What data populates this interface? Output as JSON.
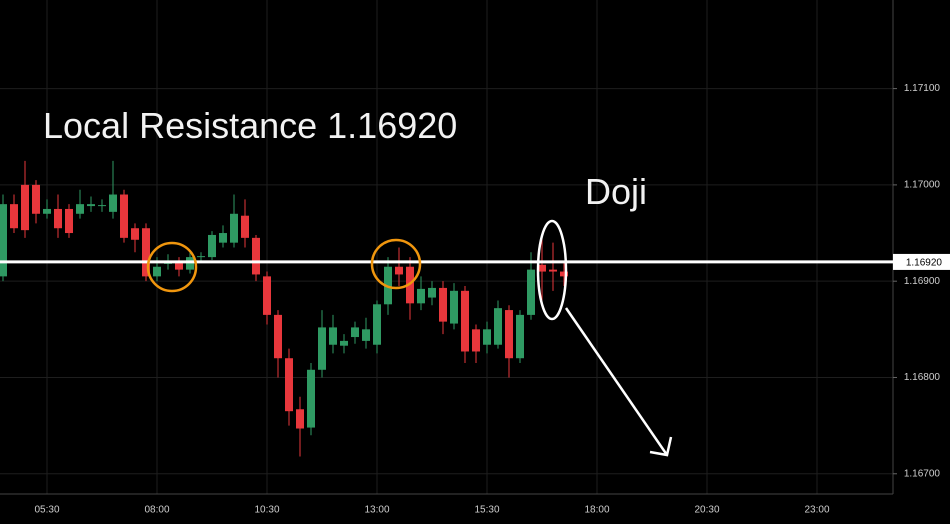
{
  "chart_data": {
    "type": "candlestick",
    "x": [
      "04:30",
      "04:45",
      "05:00",
      "05:15",
      "05:30",
      "05:45",
      "06:00",
      "06:15",
      "06:30",
      "06:45",
      "07:00",
      "07:15",
      "07:30",
      "07:45",
      "08:00",
      "08:15",
      "08:30",
      "08:45",
      "09:00",
      "09:15",
      "09:30",
      "09:45",
      "10:00",
      "10:15",
      "10:30",
      "10:45",
      "11:00",
      "11:15",
      "11:30",
      "11:45",
      "12:00",
      "12:15",
      "12:30",
      "12:45",
      "13:00",
      "13:15",
      "13:30",
      "13:45",
      "14:00",
      "14:15",
      "14:30",
      "14:45",
      "15:00",
      "15:15",
      "15:30",
      "15:45",
      "16:00",
      "16:15",
      "16:30",
      "16:45",
      "17:00",
      "17:15"
    ],
    "open": [
      1.16905,
      1.1698,
      1.17,
      1.17,
      1.1697,
      1.16975,
      1.16975,
      1.1697,
      1.16978,
      1.16978,
      1.16972,
      1.1699,
      1.16955,
      1.16955,
      1.16905,
      1.16918,
      1.1692,
      1.16912,
      1.16925,
      1.16925,
      1.1694,
      1.1694,
      1.16968,
      1.16945,
      1.16905,
      1.16865,
      1.1682,
      1.16767,
      1.16748,
      1.16808,
      1.16834,
      1.16833,
      1.16842,
      1.16838,
      1.16834,
      1.16876,
      1.16915,
      1.16915,
      1.16877,
      1.16883,
      1.16893,
      1.16856,
      1.1689,
      1.1685,
      1.16834,
      1.16834,
      1.1687,
      1.1682,
      1.16865,
      1.16917,
      1.16912,
      1.1691
    ],
    "high": [
      1.1699,
      1.1699,
      1.17025,
      1.17005,
      1.16985,
      1.1699,
      1.1698,
      1.16995,
      1.16988,
      1.16985,
      1.17025,
      1.16995,
      1.1696,
      1.1696,
      1.16925,
      1.16928,
      1.16925,
      1.1693,
      1.1693,
      1.16952,
      1.16958,
      1.1699,
      1.16985,
      1.16948,
      1.1691,
      1.1687,
      1.1683,
      1.1678,
      1.16815,
      1.1687,
      1.16865,
      1.16845,
      1.16858,
      1.16862,
      1.1688,
      1.16925,
      1.16935,
      1.16925,
      1.16905,
      1.169,
      1.169,
      1.16898,
      1.16895,
      1.16855,
      1.16858,
      1.1688,
      1.16875,
      1.1687,
      1.1693,
      1.16945,
      1.1694,
      1.1692
    ],
    "low": [
      1.169,
      1.1695,
      1.16945,
      1.1696,
      1.16965,
      1.16945,
      1.16945,
      1.16965,
      1.16972,
      1.16972,
      1.16965,
      1.1694,
      1.1693,
      1.169,
      1.169,
      1.16912,
      1.16905,
      1.16908,
      1.1692,
      1.16922,
      1.16935,
      1.16935,
      1.16935,
      1.169,
      1.16855,
      1.168,
      1.1675,
      1.16718,
      1.1674,
      1.168,
      1.16825,
      1.16825,
      1.16835,
      1.1683,
      1.16825,
      1.16865,
      1.16895,
      1.1686,
      1.1687,
      1.16875,
      1.16845,
      1.1685,
      1.16815,
      1.16815,
      1.16825,
      1.1683,
      1.168,
      1.16815,
      1.1686,
      1.1688,
      1.1689,
      1.16895
    ],
    "close": [
      1.1698,
      1.16955,
      1.16953,
      1.1697,
      1.16975,
      1.16955,
      1.1695,
      1.1698,
      1.1698,
      1.16979,
      1.1699,
      1.16945,
      1.16943,
      1.16905,
      1.16915,
      1.1692,
      1.16912,
      1.16925,
      1.16926,
      1.16948,
      1.1695,
      1.1697,
      1.16945,
      1.16907,
      1.16865,
      1.1682,
      1.16765,
      1.16747,
      1.16808,
      1.16852,
      1.16852,
      1.16838,
      1.16852,
      1.1685,
      1.16876,
      1.16915,
      1.16907,
      1.16877,
      1.16892,
      1.16893,
      1.16858,
      1.1689,
      1.16827,
      1.16827,
      1.1685,
      1.16872,
      1.1682,
      1.16865,
      1.16912,
      1.1691,
      1.1691,
      1.16905
    ],
    "up_color": "#2f9a63",
    "down_color": "#e8373c",
    "ylim": [
      1.16679,
      1.17192
    ],
    "yticks": [
      {
        "value": 1.167,
        "label": "1.16700"
      },
      {
        "value": 1.168,
        "label": "1.16800"
      },
      {
        "value": 1.169,
        "label": "1.16900"
      },
      {
        "value": 1.17,
        "label": "1.17000"
      },
      {
        "value": 1.171,
        "label": "1.17100"
      }
    ],
    "xticks": [
      "05:30",
      "08:00",
      "10:30",
      "13:00",
      "15:30",
      "18:00",
      "20:30",
      "23:00"
    ],
    "grid": true,
    "resistance": {
      "value": 1.1692,
      "label": "1.16920"
    },
    "annotations": [
      {
        "text": "Local Resistance 1.16920"
      },
      {
        "text": "Doji"
      }
    ]
  }
}
